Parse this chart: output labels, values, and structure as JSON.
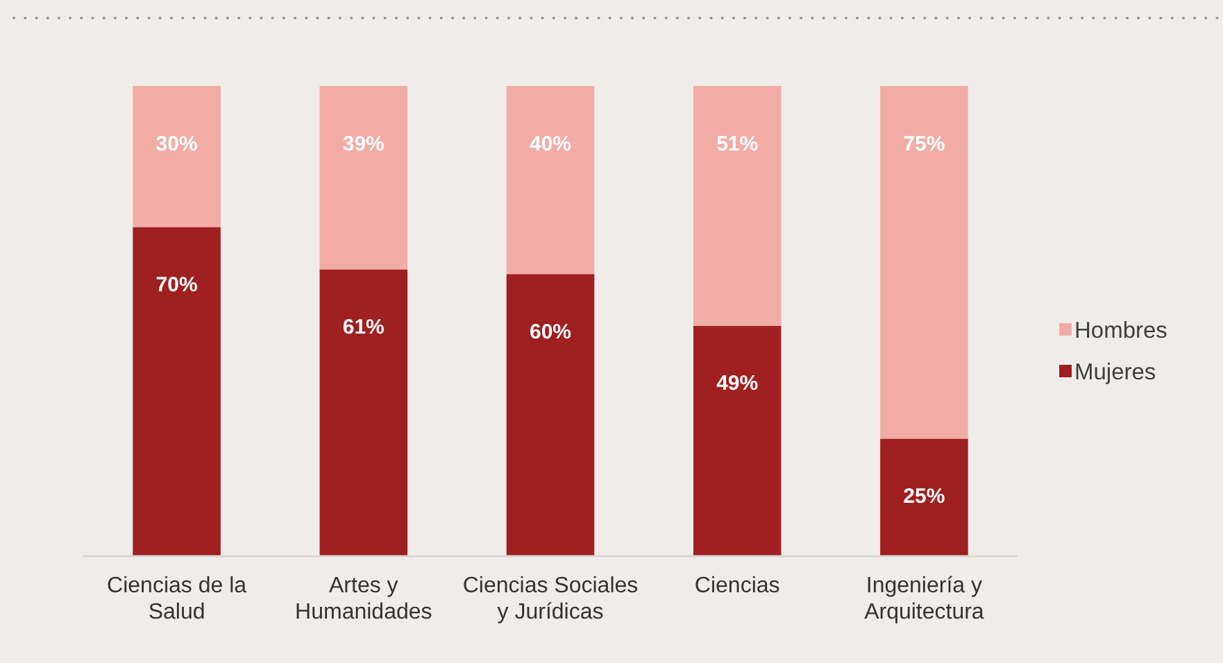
{
  "chart_data": {
    "type": "bar",
    "stacked": true,
    "categories": [
      "Ciencias de la Salud",
      "Artes y Humanidades",
      "Ciencias Sociales y Jurídicas",
      "Ciencias",
      "Ingeniería y Arquitectura"
    ],
    "series": [
      {
        "name": "Mujeres",
        "color": "#a01f20",
        "values": [
          70,
          61,
          60,
          49,
          25
        ],
        "value_labels": [
          "70%",
          "61%",
          "60%",
          "49%",
          "25%"
        ]
      },
      {
        "name": "Hombres",
        "color": "#f2aca6",
        "values": [
          30,
          39,
          40,
          51,
          75
        ],
        "value_labels": [
          "30%",
          "39%",
          "40%",
          "51%",
          "75%"
        ]
      }
    ],
    "ylim": [
      0,
      100
    ],
    "tick_labels": "x",
    "legend": "right"
  }
}
